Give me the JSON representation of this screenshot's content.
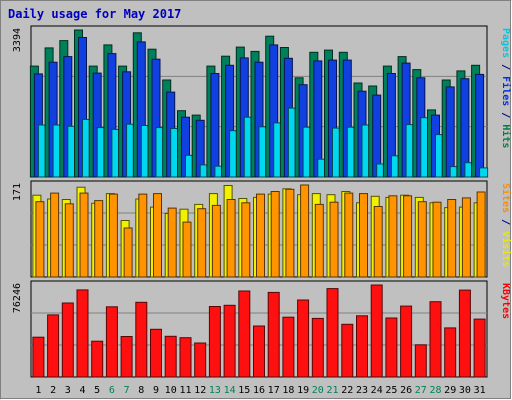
{
  "chart_data": {
    "type": "bar",
    "title": "Daily usage for May 2017",
    "categories": [
      "1",
      "2",
      "3",
      "4",
      "5",
      "6",
      "7",
      "8",
      "9",
      "10",
      "11",
      "12",
      "13",
      "14",
      "15",
      "16",
      "17",
      "18",
      "19",
      "20",
      "21",
      "22",
      "23",
      "24",
      "25",
      "26",
      "27",
      "28",
      "29",
      "30",
      "31"
    ],
    "weekend_days": [
      "6",
      "7",
      "13",
      "14",
      "20",
      "21",
      "27",
      "28"
    ],
    "panels": [
      {
        "id": "top",
        "max_label": "3394",
        "ylim": [
          0,
          3394
        ],
        "right_labels": [
          {
            "text": "Pages",
            "color": "#00c8e0"
          },
          {
            "text": " / ",
            "color": "#000080"
          },
          {
            "text": "Files",
            "color": "#0030e0"
          },
          {
            "text": " / ",
            "color": "#000080"
          },
          {
            "text": "Hits",
            "color": "#008040"
          }
        ],
        "series": [
          {
            "name": "Hits",
            "color": "#00805a",
            "values": [
              2560,
              2980,
              3150,
              3394,
              2560,
              3050,
              2560,
              3330,
              2950,
              2240,
              1530,
              1430,
              2560,
              2790,
              3000,
              2900,
              3250,
              2990,
              2290,
              2880,
              2930,
              2880,
              2170,
              2100,
              2560,
              2780,
              2480,
              1550,
              2240,
              2450,
              2580
            ]
          },
          {
            "name": "Files",
            "color": "#1040e0",
            "values": [
              2380,
              2650,
              2780,
              3220,
              2400,
              2850,
              2430,
              3120,
              2720,
              1960,
              1380,
              1310,
              2390,
              2580,
              2750,
              2650,
              3050,
              2740,
              2130,
              2680,
              2700,
              2700,
              1980,
              1890,
              2390,
              2630,
              2290,
              1430,
              2080,
              2270,
              2370
            ]
          },
          {
            "name": "Pages",
            "color": "#00d8f0",
            "values": [
              1200,
              1200,
              1170,
              1330,
              1140,
              1100,
              1220,
              1190,
              1140,
              1120,
              500,
              280,
              250,
              1070,
              1380,
              1160,
              1250,
              1590,
              1150,
              410,
              1130,
              1150,
              1200,
              300,
              490,
              1210,
              1370,
              980,
              240,
              330,
              210
            ]
          }
        ]
      },
      {
        "id": "middle",
        "max_label": "171",
        "ylim": [
          0,
          171
        ],
        "right_labels": [
          {
            "text": "Sites",
            "color": "#ff8c00"
          },
          {
            "text": " / ",
            "color": "#000080"
          },
          {
            "text": "Visits",
            "color": "#e8e800"
          }
        ],
        "series": [
          {
            "name": "Visits",
            "color": "#f0f000",
            "values": [
              152,
              145,
              144,
              167,
              137,
              155,
              105,
              145,
              130,
              118,
              126,
              135,
              155,
              170,
              146,
              148,
              154,
              164,
              153,
              155,
              153,
              159,
              138,
              150,
              148,
              152,
              148,
              138,
              129,
              130,
              138
            ]
          },
          {
            "name": "Sites",
            "color": "#ff9400",
            "values": [
              140,
              156,
              136,
              156,
              142,
              154,
              91,
              154,
              155,
              128,
              102,
              127,
              133,
              144,
              138,
              154,
              159,
              163,
              171,
              135,
              139,
              156,
              155,
              131,
              151,
              151,
              140,
              139,
              144,
              147,
              158
            ]
          }
        ]
      },
      {
        "id": "bottom",
        "max_label": "76246",
        "ylim": [
          0,
          76246
        ],
        "right_labels": [
          {
            "text": "KBytes",
            "color": "#ff0000"
          }
        ],
        "series": [
          {
            "name": "KBytes",
            "color": "#ff1010",
            "values": [
              33000,
              51500,
              61300,
              72200,
              29700,
              58200,
              33600,
              61900,
              39500,
              33700,
              32600,
              28200,
              58400,
              59400,
              71300,
              42300,
              70100,
              49600,
              63800,
              48600,
              73300,
              43700,
              50700,
              76246,
              48900,
              58800,
              26700,
              62400,
              40700,
              72000,
              48000
            ]
          }
        ]
      }
    ]
  }
}
